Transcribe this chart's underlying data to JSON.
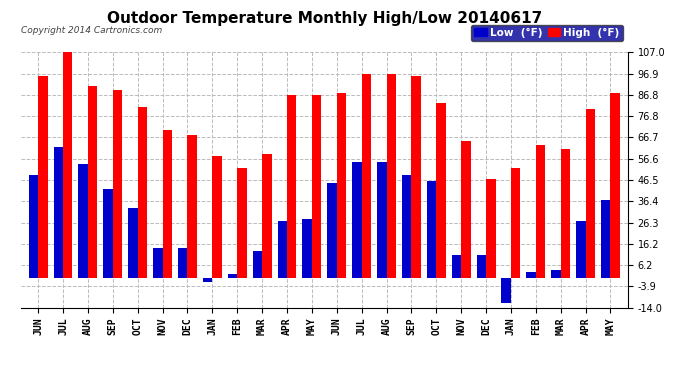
{
  "title": "Outdoor Temperature Monthly High/Low 20140617",
  "copyright": "Copyright 2014 Cartronics.com",
  "legend_low": "Low  (°F)",
  "legend_high": "High  (°F)",
  "months": [
    "JUN",
    "JUL",
    "AUG",
    "SEP",
    "OCT",
    "NOV",
    "DEC",
    "JAN",
    "FEB",
    "MAR",
    "APR",
    "MAY",
    "JUN",
    "JUL",
    "AUG",
    "SEP",
    "OCT",
    "NOV",
    "DEC",
    "JAN",
    "FEB",
    "MAR",
    "APR",
    "MAY"
  ],
  "high": [
    96,
    107,
    91,
    89,
    81,
    70,
    68,
    58,
    52,
    59,
    87,
    87,
    88,
    97,
    97,
    96,
    83,
    65,
    47,
    52,
    63,
    61,
    80,
    88
  ],
  "low": [
    49,
    62,
    54,
    42,
    33,
    14,
    14,
    -2,
    2,
    13,
    27,
    28,
    45,
    55,
    55,
    49,
    46,
    11,
    11,
    -12,
    3,
    4,
    27,
    37
  ],
  "ylim": [
    -14.0,
    107.0
  ],
  "yticks": [
    -14.0,
    -3.9,
    6.2,
    16.2,
    26.3,
    36.4,
    46.5,
    56.6,
    66.7,
    76.8,
    86.8,
    96.9,
    107.0
  ],
  "ytick_labels": [
    "-14.0",
    "-3.9",
    "6.2",
    "16.2",
    "26.3",
    "36.4",
    "46.5",
    "56.6",
    "66.7",
    "76.8",
    "86.8",
    "96.9",
    "107.0"
  ],
  "bar_width": 0.38,
  "high_color": "#ff0000",
  "low_color": "#0000cc",
  "background_color": "#ffffff",
  "plot_bg_color": "#ffffff",
  "grid_color": "#bbbbbb",
  "title_fontsize": 11,
  "tick_fontsize": 7,
  "legend_fontsize": 7.5,
  "legend_bg": "#000099"
}
